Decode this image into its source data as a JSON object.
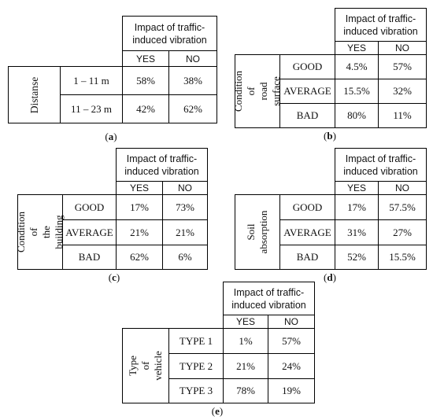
{
  "header_text": "Impact of traffic-\ninduced vibration",
  "col_yes": "YES",
  "col_no": "NO",
  "a": {
    "caption_letter": "a",
    "factor": "Distanse",
    "rows": [
      {
        "label": "1 – 11 m",
        "yes": "58%",
        "no": "38%"
      },
      {
        "label": "11 – 23 m",
        "yes": "42%",
        "no": "62%"
      }
    ]
  },
  "b": {
    "caption_letter": "b",
    "factor": "Condition of\nroad surface",
    "rows": [
      {
        "label": "GOOD",
        "yes": "4.5%",
        "no": "57%"
      },
      {
        "label": "AVERAGE",
        "yes": "15.5%",
        "no": "32%"
      },
      {
        "label": "BAD",
        "yes": "80%",
        "no": "11%"
      }
    ]
  },
  "c": {
    "caption_letter": "c",
    "factor": "Condition of\nthe building",
    "rows": [
      {
        "label": "GOOD",
        "yes": "17%",
        "no": "73%"
      },
      {
        "label": "AVERAGE",
        "yes": "21%",
        "no": "21%"
      },
      {
        "label": "BAD",
        "yes": "62%",
        "no": "6%"
      }
    ]
  },
  "d": {
    "caption_letter": "d",
    "factor": "Soil\nabsorption",
    "rows": [
      {
        "label": "GOOD",
        "yes": "17%",
        "no": "57.5%"
      },
      {
        "label": "AVERAGE",
        "yes": "31%",
        "no": "27%"
      },
      {
        "label": "BAD",
        "yes": "52%",
        "no": "15.5%"
      }
    ]
  },
  "e": {
    "caption_letter": "e",
    "factor": "Type of\nvehicle",
    "rows": [
      {
        "label": "TYPE 1",
        "yes": "1%",
        "no": "57%"
      },
      {
        "label": "TYPE 2",
        "yes": "21%",
        "no": "24%"
      },
      {
        "label": "TYPE 3",
        "yes": "78%",
        "no": "19%"
      }
    ]
  }
}
